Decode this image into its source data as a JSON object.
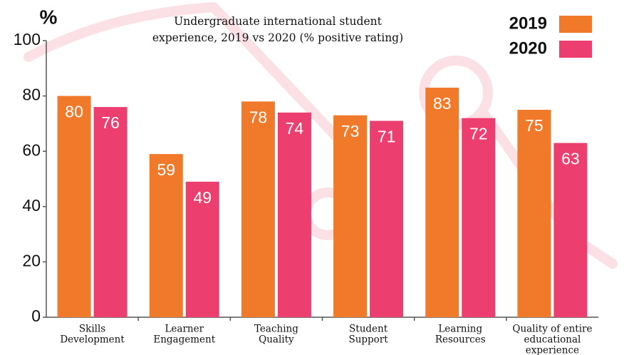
{
  "chart_data": {
    "type": "bar",
    "title": [
      "Undergraduate international student",
      "experience, 2019 vs 2020 (% positive rating)"
    ],
    "y_label": "%",
    "categories": [
      [
        "Skills",
        "Development"
      ],
      [
        "Learner",
        "Engagement"
      ],
      [
        "Teaching",
        "Quality"
      ],
      [
        "Student",
        "Support"
      ],
      [
        "Learning",
        "Resources"
      ],
      [
        "Quality of entire",
        "educational",
        "experience"
      ]
    ],
    "series": [
      {
        "name": "2019",
        "color": "#f07a2a",
        "values": [
          80,
          59,
          78,
          73,
          83,
          75
        ]
      },
      {
        "name": "2020",
        "color": "#ec3e6f",
        "values": [
          76,
          49,
          74,
          71,
          72,
          63
        ]
      }
    ],
    "ylim": [
      0,
      100
    ],
    "yticks": [
      0,
      20,
      40,
      60,
      80,
      100
    ],
    "grid": false,
    "legend": "top-right"
  }
}
